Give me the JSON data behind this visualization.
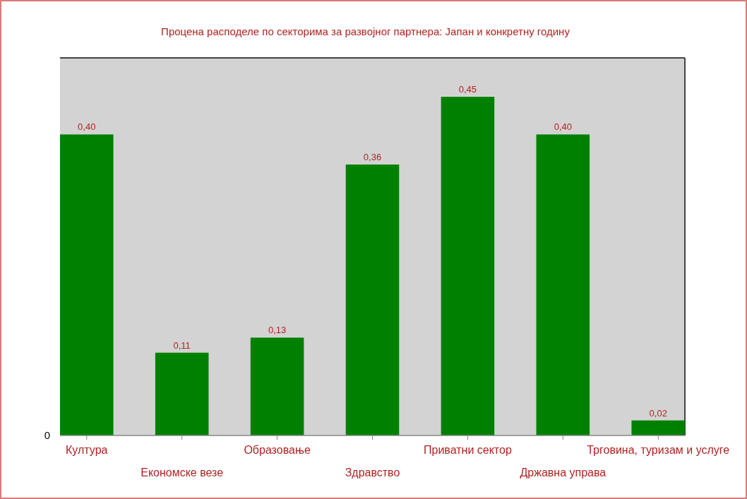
{
  "chart_data": {
    "type": "bar",
    "title": "Процена расподеле по секторима за развојног партнера: Јапан и конкретну годину",
    "categories": [
      "Култура",
      "Економске везе",
      "Образовање",
      "Здравство",
      "Приватни сектор",
      "Државна управа",
      "Трговина, туризам и услуге"
    ],
    "values": [
      0.4,
      0.11,
      0.13,
      0.36,
      0.45,
      0.4,
      0.02
    ],
    "value_labels": [
      "0,40",
      "0,11",
      "0,13",
      "0,36",
      "0,45",
      "0,40",
      "0,02"
    ],
    "color": "#008000",
    "annotations": [
      "0"
    ]
  }
}
